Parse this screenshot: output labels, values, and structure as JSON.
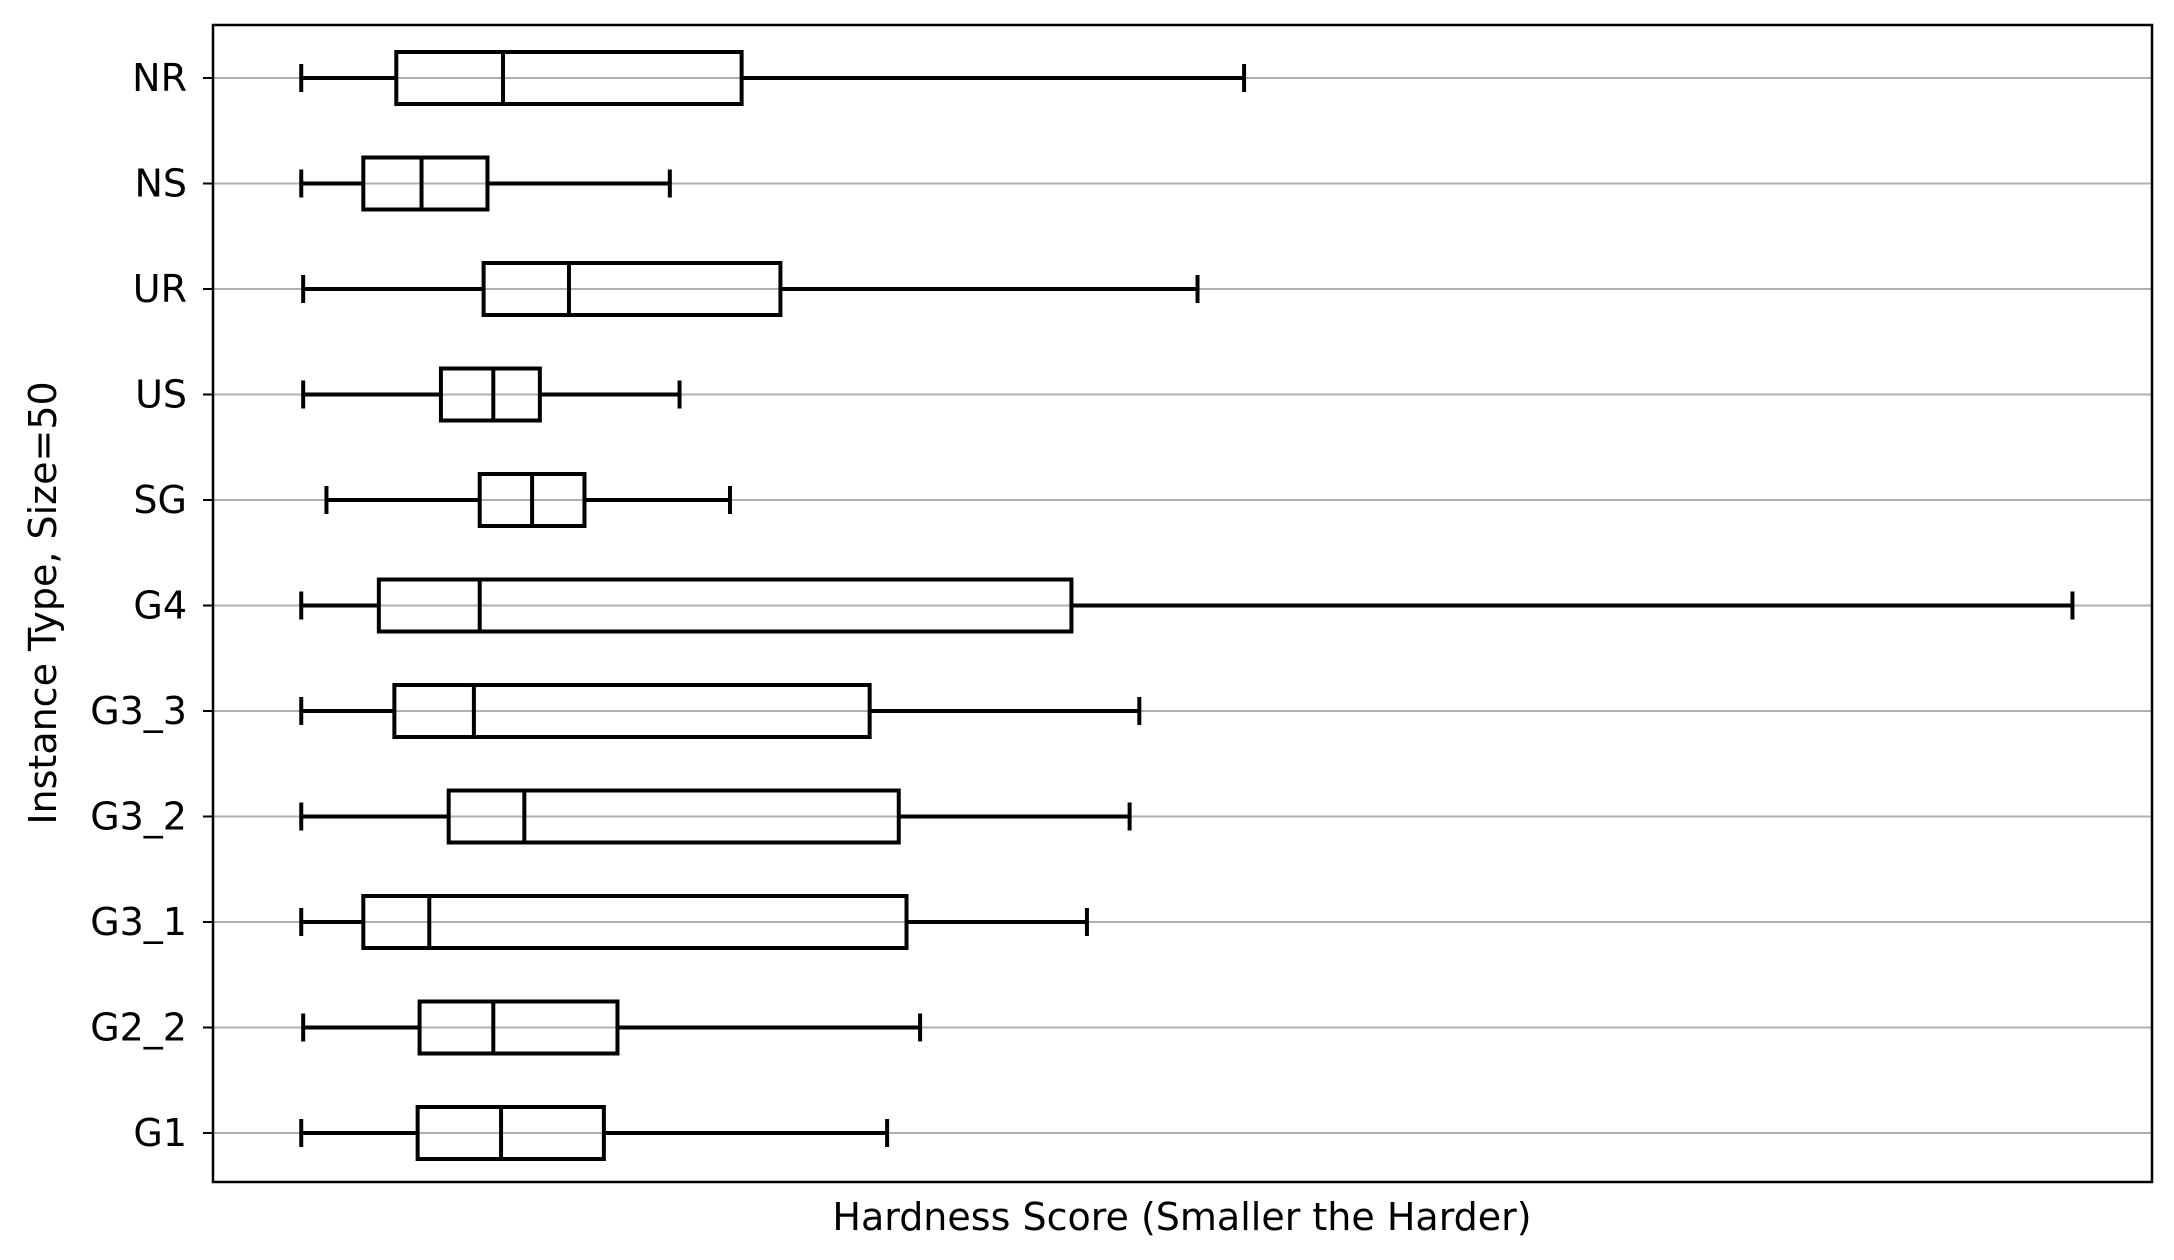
{
  "chart_data": {
    "type": "boxplot",
    "orientation": "horizontal",
    "title": "",
    "xlabel": "Hardness Score (Smaller the Harder)",
    "ylabel": "Instance Type, Size=50",
    "x_ticks_shown": false,
    "xlim": [
      0,
      100
    ],
    "grid": "horizontal",
    "legend": "none",
    "colors": {
      "box": "#000000",
      "grid": "#b0b0b0",
      "background": "#ffffff"
    },
    "categories": [
      "NR",
      "NS",
      "UR",
      "US",
      "SG",
      "G4",
      "G3_3",
      "G3_2",
      "G3_1",
      "G2_2",
      "G1"
    ],
    "boxes": [
      {
        "label": "NR",
        "whislo": 4.6,
        "q1": 9.5,
        "med": 15.0,
        "q3": 27.3,
        "whishi": 53.2
      },
      {
        "label": "NS",
        "whislo": 4.6,
        "q1": 7.8,
        "med": 10.8,
        "q3": 14.2,
        "whishi": 23.6
      },
      {
        "label": "UR",
        "whislo": 4.7,
        "q1": 14.0,
        "med": 18.4,
        "q3": 29.3,
        "whishi": 50.8
      },
      {
        "label": "US",
        "whislo": 4.7,
        "q1": 11.8,
        "med": 14.5,
        "q3": 16.9,
        "whishi": 24.1
      },
      {
        "label": "SG",
        "whislo": 5.9,
        "q1": 13.8,
        "med": 16.5,
        "q3": 19.2,
        "whishi": 26.7
      },
      {
        "label": "G4",
        "whislo": 4.6,
        "q1": 8.6,
        "med": 13.8,
        "q3": 44.3,
        "whishi": 95.9
      },
      {
        "label": "G3_3",
        "whislo": 4.6,
        "q1": 9.4,
        "med": 13.5,
        "q3": 33.9,
        "whishi": 47.8
      },
      {
        "label": "G3_2",
        "whislo": 4.6,
        "q1": 12.2,
        "med": 16.1,
        "q3": 35.4,
        "whishi": 47.3
      },
      {
        "label": "G3_1",
        "whislo": 4.6,
        "q1": 7.8,
        "med": 11.2,
        "q3": 35.8,
        "whishi": 45.1
      },
      {
        "label": "G2_2",
        "whislo": 4.7,
        "q1": 10.7,
        "med": 14.5,
        "q3": 20.9,
        "whishi": 36.5
      },
      {
        "label": "G1",
        "whislo": 4.6,
        "q1": 10.6,
        "med": 14.9,
        "q3": 20.2,
        "whishi": 34.8
      }
    ]
  }
}
